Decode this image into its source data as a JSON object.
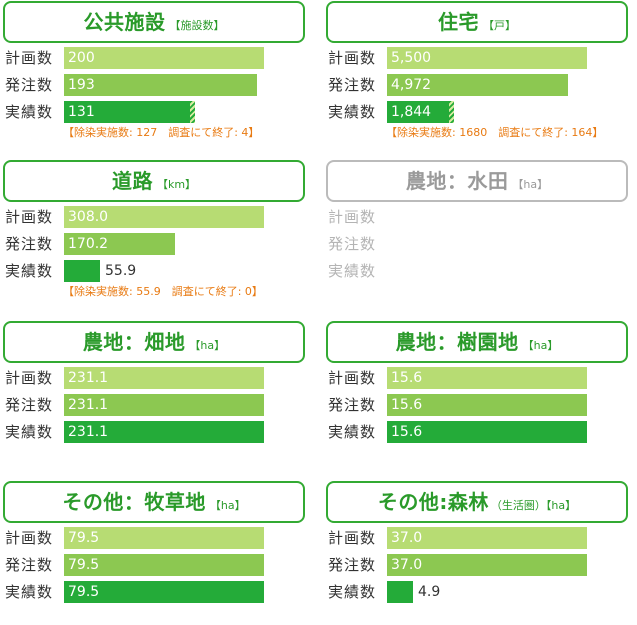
{
  "chart_data": [
    {
      "type": "bar",
      "title": "公共施設",
      "unit": "【施設数】",
      "categories": [
        "計画数",
        "発注数",
        "実績数"
      ],
      "values": [
        200,
        193,
        131
      ],
      "labels": [
        "200",
        "193",
        "131"
      ],
      "hatched_actual": true,
      "note": "【除染実施数: 127　調査にて終了: 4】"
    },
    {
      "type": "bar",
      "title": "住宅",
      "unit": "【戸】",
      "categories": [
        "計画数",
        "発注数",
        "実績数"
      ],
      "values": [
        5500,
        4972,
        1844
      ],
      "labels": [
        "5,500",
        "4,972",
        "1,844"
      ],
      "hatched_actual": true,
      "note": "【除染実施数: 1680　調査にて終了: 164】"
    },
    {
      "type": "bar",
      "title": "道路",
      "unit": "【km】",
      "categories": [
        "計画数",
        "発注数",
        "実績数"
      ],
      "values": [
        308.0,
        170.2,
        55.9
      ],
      "labels": [
        "308.0",
        "170.2",
        "55.9"
      ],
      "hatched_actual": false,
      "note": "【除染実施数: 55.9　調査にて終了: 0】"
    },
    {
      "type": "bar",
      "title": "農地：水田",
      "unit": "【ha】",
      "categories": [
        "計画数",
        "発注数",
        "実績数"
      ],
      "values": [],
      "labels": [],
      "inactive": true
    },
    {
      "type": "bar",
      "title": "農地：畑地",
      "unit": "【ha】",
      "categories": [
        "計画数",
        "発注数",
        "実績数"
      ],
      "values": [
        231.1,
        231.1,
        231.1
      ],
      "labels": [
        "231.1",
        "231.1",
        "231.1"
      ]
    },
    {
      "type": "bar",
      "title": "農地：樹園地",
      "unit": "【ha】",
      "categories": [
        "計画数",
        "発注数",
        "実績数"
      ],
      "values": [
        15.6,
        15.6,
        15.6
      ],
      "labels": [
        "15.6",
        "15.6",
        "15.6"
      ]
    },
    {
      "type": "bar",
      "title": "その他：牧草地",
      "unit": "【ha】",
      "categories": [
        "計画数",
        "発注数",
        "実績数"
      ],
      "values": [
        79.5,
        79.5,
        79.5
      ],
      "labels": [
        "79.5",
        "79.5",
        "79.5"
      ]
    },
    {
      "type": "bar",
      "title": "その他:森林",
      "subunit": "（生活圏）",
      "unit": "【ha】",
      "categories": [
        "計画数",
        "発注数",
        "実績数"
      ],
      "values": [
        37.0,
        37.0,
        4.9
      ],
      "labels": [
        "37.0",
        "37.0",
        "4.9"
      ]
    }
  ],
  "colors": {
    "plan": "#b7dc73",
    "order": "#8cc851",
    "actual": "#24ab39",
    "title": "#2a9a2a",
    "note": "#e87a12",
    "inactive": "#b4b4b4"
  }
}
